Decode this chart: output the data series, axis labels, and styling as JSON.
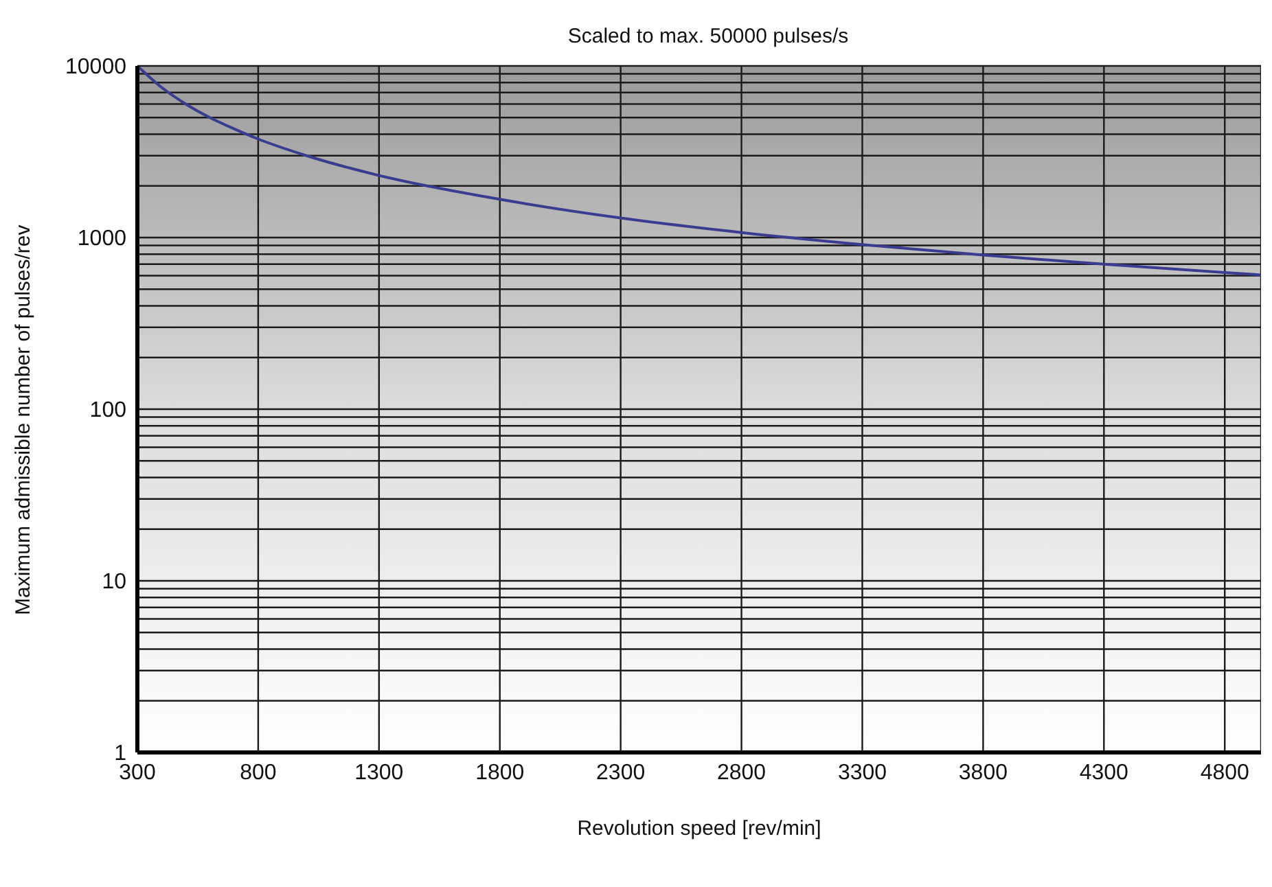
{
  "chart_data": {
    "type": "line",
    "title": "Scaled to max. 50000 pulses/s",
    "xlabel": "Revolution speed [rev/min]",
    "ylabel": "Maximum admissible number of pulses/rev",
    "x": [
      300,
      400,
      500,
      600,
      700,
      800,
      1000,
      1300,
      1800,
      2300,
      2800,
      3300,
      3800,
      4300,
      4800,
      4950
    ],
    "series": [
      {
        "color": "#3b3b8f",
        "values": [
          10000,
          7500,
          6000,
          5000,
          4300,
          3750,
          3000,
          2300,
          1670,
          1300,
          1070,
          910,
          790,
          700,
          625,
          606
        ]
      }
    ],
    "xlim": [
      300,
      4950
    ],
    "xticks": [
      300,
      800,
      1300,
      1800,
      2300,
      2800,
      3300,
      3800,
      4300,
      4800
    ],
    "ylim": [
      1,
      10000
    ],
    "log": true,
    "yticks": [
      1,
      {
        "value": 2,
        "label": null
      },
      {
        "value": 3,
        "label": null
      },
      {
        "value": 4,
        "label": null
      },
      {
        "value": 5,
        "label": null
      },
      {
        "value": 6,
        "label": null
      },
      {
        "value": 7,
        "label": null
      },
      {
        "value": 8,
        "label": null
      },
      {
        "value": 9,
        "label": null
      },
      10,
      {
        "value": 20,
        "label": null
      },
      {
        "value": 30,
        "label": null
      },
      {
        "value": 40,
        "label": null
      },
      {
        "value": 50,
        "label": null
      },
      {
        "value": 60,
        "label": null
      },
      {
        "value": 70,
        "label": null
      },
      {
        "value": 80,
        "label": null
      },
      {
        "value": 90,
        "label": null
      },
      100,
      {
        "value": 200,
        "label": null
      },
      {
        "value": 300,
        "label": null
      },
      {
        "value": 400,
        "label": null
      },
      {
        "value": 500,
        "label": null
      },
      {
        "value": 600,
        "label": null
      },
      {
        "value": 700,
        "label": null
      },
      {
        "value": 800,
        "label": null
      },
      {
        "value": 900,
        "label": null
      },
      1000,
      {
        "value": 2000,
        "label": null
      },
      {
        "value": 3000,
        "label": null
      },
      {
        "value": 4000,
        "label": null
      },
      {
        "value": 5000,
        "label": null
      },
      {
        "value": 6000,
        "label": null
      },
      {
        "value": 7000,
        "label": null
      },
      {
        "value": 8000,
        "label": null
      },
      {
        "value": 9000,
        "label": null
      },
      10000
    ],
    "grid": true,
    "marker": "none",
    "line_style": "solid"
  }
}
